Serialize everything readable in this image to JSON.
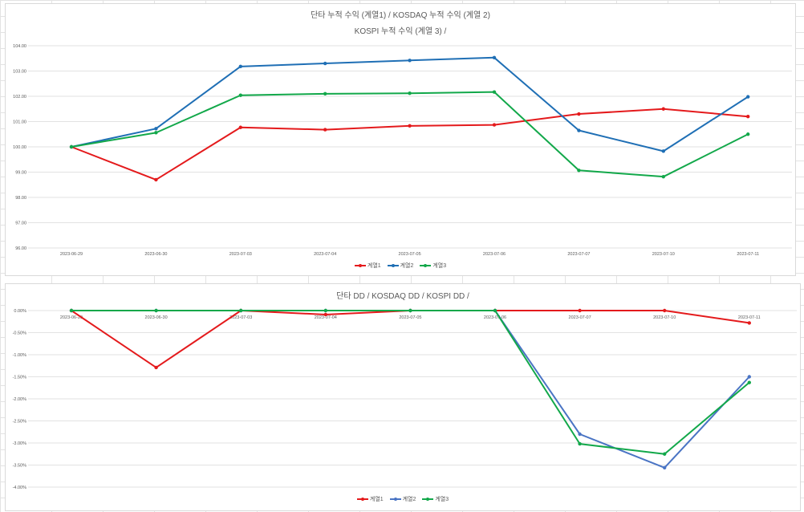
{
  "charts": [
    {
      "title_line1": "단타 누적 수익 (계열1) /  KOSDAQ 누적 수익 (계열 2)",
      "title_line2": "KOSPI 누적 수익 (계열 3) /",
      "legend": [
        "계열1",
        "계열2",
        "계열3"
      ]
    },
    {
      "title_line1": "단타 DD / KOSDAQ DD / KOSPI DD /",
      "legend": [
        "계열1",
        "계열2",
        "계열3"
      ]
    }
  ],
  "chart_data": [
    {
      "type": "line",
      "title": "단타 누적 수익 (계열1) /  KOSDAQ 누적 수익 (계열 2) KOSPI 누적 수익 (계열 3) /",
      "categories": [
        "2023-06-29",
        "2023-06-30",
        "2023-07-03",
        "2023-07-04",
        "2023-07-05",
        "2023-07-06",
        "2023-07-07",
        "2023-07-10",
        "2023-07-11"
      ],
      "ylim": [
        96,
        104
      ],
      "yticks": [
        "104.00",
        "103.00",
        "102.00",
        "101.00",
        "100.00",
        "99.00",
        "98.00",
        "97.00",
        "96.00"
      ],
      "grid": true,
      "legend_position": "bottom",
      "series": [
        {
          "name": "계열1",
          "color": "#e41a1c",
          "values": [
            100.0,
            98.7,
            100.77,
            100.68,
            100.83,
            100.87,
            101.3,
            101.5,
            101.2
          ]
        },
        {
          "name": "계열2",
          "color": "#1f6fb5",
          "values": [
            100.0,
            100.72,
            103.18,
            103.3,
            103.42,
            103.53,
            100.65,
            99.83,
            101.98
          ]
        },
        {
          "name": "계열3",
          "color": "#12a84a",
          "values": [
            100.0,
            100.56,
            102.04,
            102.1,
            102.12,
            102.17,
            99.07,
            98.82,
            100.5
          ]
        }
      ]
    },
    {
      "type": "line",
      "title": "단타 DD / KOSDAQ DD / KOSPI DD /",
      "categories": [
        "2023-06-29",
        "2023-06-30",
        "2023-07-03",
        "2023-07-04",
        "2023-07-05",
        "2023-07-06",
        "2023-07-07",
        "2023-07-10",
        "2023-07-11"
      ],
      "ylim": [
        -4.0,
        0.0
      ],
      "yticks": [
        "0.00%",
        "-0.50%",
        "-1.00%",
        "-1.50%",
        "-2.00%",
        "-2.50%",
        "-3.00%",
        "-3.50%",
        "-4.00%"
      ],
      "grid": true,
      "legend_position": "bottom",
      "series": [
        {
          "name": "계열1",
          "color": "#e41a1c",
          "values": [
            0.0,
            -1.29,
            0.0,
            -0.09,
            0.0,
            0.0,
            0.0,
            0.0,
            -0.28
          ]
        },
        {
          "name": "계열2",
          "color": "#4a74c4",
          "values": [
            0.0,
            0.0,
            0.0,
            0.0,
            0.0,
            0.0,
            -2.8,
            -3.56,
            -1.5
          ]
        },
        {
          "name": "계열3",
          "color": "#12a84a",
          "values": [
            0.0,
            0.0,
            0.0,
            0.0,
            0.0,
            0.0,
            -3.02,
            -3.25,
            -1.63
          ]
        }
      ]
    }
  ]
}
